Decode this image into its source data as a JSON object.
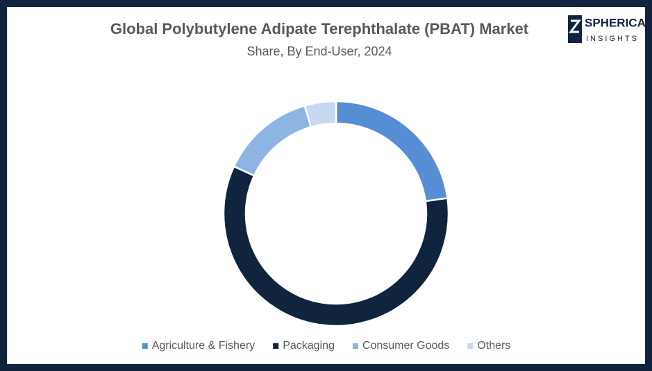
{
  "chart_data": {
    "type": "donut",
    "title": "Global Polybutylene Adipate Terephthalate (PBAT) Market",
    "subtitle": "Share, By End-User, 2024",
    "logo": {
      "line1": "SPHERICAL",
      "line2": "INSIGHTS"
    },
    "categories": [
      "Agriculture & Fishery",
      "Packaging",
      "Consumer Goods",
      "Others"
    ],
    "values": [
      22.8,
      59.1,
      13.6,
      4.5
    ],
    "colors": [
      "#558ed5",
      "#10243e",
      "#8eb4e3",
      "#c6d9f1"
    ],
    "legend": "bottom"
  }
}
